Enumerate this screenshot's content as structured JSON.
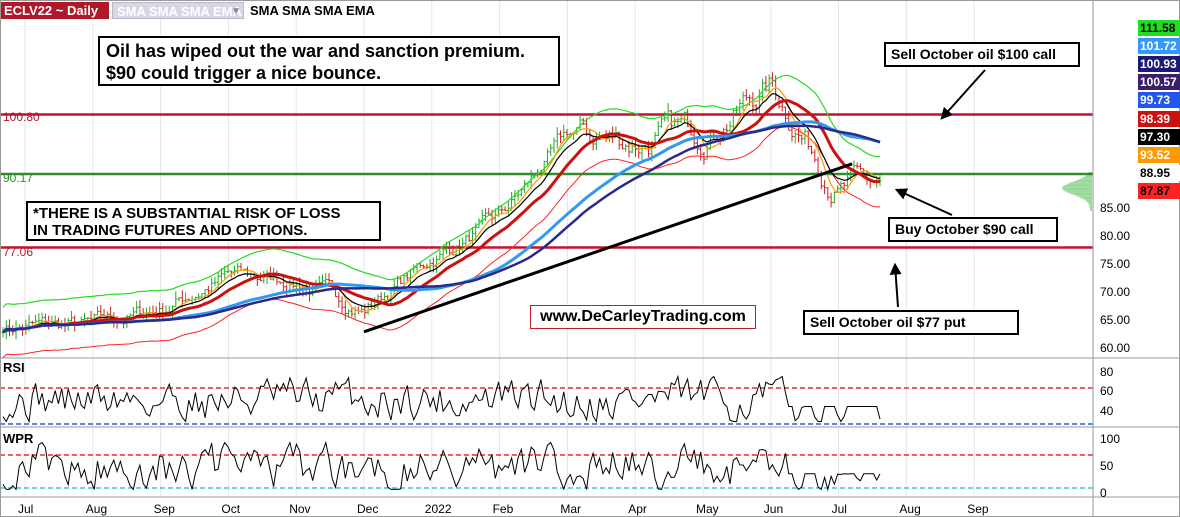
{
  "header": {
    "symbol_title": "ECLV22 ~ Daily",
    "indicator_dropdown": "SMA SMA SMA EMA",
    "indicator_text": "SMA SMA SMA EMA"
  },
  "annotations": {
    "main_line1": "Oil has wiped out the war and sanction premium.",
    "main_line2": "$90 could trigger a nice bounce.",
    "risk_line1": "*THERE IS A SUBSTANTIAL RISK OF LOSS",
    "risk_line2": "IN TRADING FUTURES AND OPTIONS.",
    "sell_call": "Sell October oil $100 call",
    "buy_call": "Buy October $90 call",
    "sell_put": "Sell October oil $77 put",
    "website": "www.DeCarleyTrading.com"
  },
  "levels": [
    {
      "label": "100.80",
      "value": 100.8,
      "color": "#c8102e"
    },
    {
      "label": "90.17",
      "value": 90.17,
      "color": "#2e8b2e"
    },
    {
      "label": "77.06",
      "value": 77.06,
      "color": "#c8102e"
    }
  ],
  "price_labels": [
    {
      "text": "111.58",
      "bg": "#22dd22",
      "fg": "#000000"
    },
    {
      "text": "101.72",
      "bg": "#3399ff",
      "fg": "#ffffff"
    },
    {
      "text": "100.93",
      "bg": "#1a1a7a",
      "fg": "#ffffff"
    },
    {
      "text": "100.57",
      "bg": "#3b1f6e",
      "fg": "#ffffff"
    },
    {
      "text": "99.73",
      "bg": "#2255ee",
      "fg": "#ffffff"
    },
    {
      "text": "98.39",
      "bg": "#cc1111",
      "fg": "#ffffff"
    },
    {
      "text": "97.30",
      "bg": "#000000",
      "fg": "#ffffff"
    },
    {
      "text": "93.52",
      "bg": "#ff9900",
      "fg": "#ffffff"
    },
    {
      "text": "88.95",
      "bg": "#ffffff",
      "fg": "#000000"
    },
    {
      "text": "87.87",
      "bg": "#ff2222",
      "fg": "#000000"
    }
  ],
  "price_axis_ticks": [
    "85.00",
    "80.00",
    "75.00",
    "70.00",
    "65.00",
    "60.00"
  ],
  "rsi_pane": {
    "label": "RSI",
    "ticks": [
      "80",
      "60",
      "40"
    ]
  },
  "wpr_pane": {
    "label": "WPR",
    "ticks": [
      "100",
      "50",
      "0"
    ]
  },
  "x_axis_labels": [
    "Jul",
    "Aug",
    "Sep",
    "Oct",
    "Nov",
    "Dec",
    "2022",
    "Feb",
    "Mar",
    "Apr",
    "May",
    "Jun",
    "Jul",
    "Aug",
    "Sep"
  ],
  "colors": {
    "bar_up": "#22aa22",
    "bar_down": "#cc2222",
    "sma_red": "#cc1111",
    "sma_blue": "#2a2a8c",
    "sma_light_blue": "#3399ee",
    "ema_black": "#000000",
    "envelope_green": "#22dd22",
    "envelope_red": "#ff2222",
    "orange": "#ff9900"
  },
  "chart_data": {
    "type": "candlestick",
    "symbol": "ECLV22",
    "timeframe": "Daily",
    "x_range": [
      "2021-07",
      "2022-09"
    ],
    "y_range": [
      58,
      114
    ],
    "y_ticks": [
      60,
      65,
      70,
      75,
      80,
      85
    ],
    "price_path": [
      {
        "month": "Jul 2021",
        "value": 63
      },
      {
        "month": "Aug 2021",
        "value": 63
      },
      {
        "month": "Sep 2021",
        "value": 66
      },
      {
        "month": "Oct 2021",
        "value": 72
      },
      {
        "month": "Nov 2021",
        "value": 71
      },
      {
        "month": "Dec 2021",
        "value": 66
      },
      {
        "month": "Jan 2022",
        "value": 75
      },
      {
        "month": "Feb 2022",
        "value": 82
      },
      {
        "month": "Mar 2022",
        "value": 97
      },
      {
        "month": "Apr 2022",
        "value": 96
      },
      {
        "month": "May 2022",
        "value": 98
      },
      {
        "month": "Jun 2022",
        "value": 106
      },
      {
        "month": "Jul 2022",
        "value": 88
      }
    ],
    "last_value": 88.95,
    "horizontal_levels": [
      100.8,
      90.17,
      77.06
    ],
    "trendline": {
      "start": {
        "month": "Dec 2021",
        "value": 62
      },
      "end": {
        "month": "Jul 2022",
        "value": 92
      }
    },
    "rsi": {
      "overbought": 70,
      "oversold": 30,
      "ticks": [
        80,
        60,
        40
      ]
    },
    "wpr": {
      "overbought": 80,
      "oversold": 20,
      "ticks": [
        100,
        50,
        0
      ]
    }
  }
}
